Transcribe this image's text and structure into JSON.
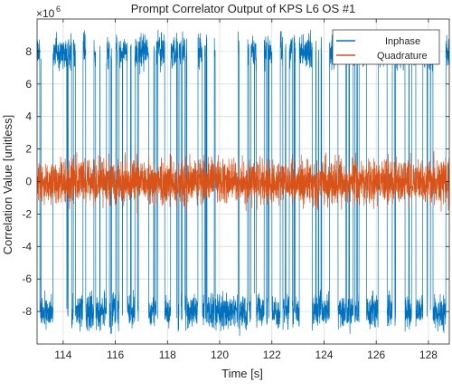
{
  "chart_data": {
    "type": "line",
    "title": "Prompt Correlator Output of KPS L6 OS #1",
    "xlabel": "Time [s]",
    "ylabel": "Correlation Value [unitless]",
    "y_exponent_label": "×10",
    "y_exponent_power": "6",
    "xlim": [
      113,
      128.8
    ],
    "ylim": [
      -10,
      10
    ],
    "x_ticks": [
      114,
      116,
      118,
      120,
      122,
      124,
      126,
      128
    ],
    "y_ticks": [
      -8,
      -6,
      -4,
      -2,
      0,
      2,
      4,
      6,
      8
    ],
    "grid": true,
    "legend_position": "top-right",
    "series": [
      {
        "name": "Inphase",
        "color": "#0072BD",
        "amplitude": 8,
        "amplitude_spread": 1.2,
        "symbol_flips_approx": 110
      },
      {
        "name": "Quadrature",
        "color": "#D95319",
        "amplitude_spread": 1.3
      }
    ]
  }
}
